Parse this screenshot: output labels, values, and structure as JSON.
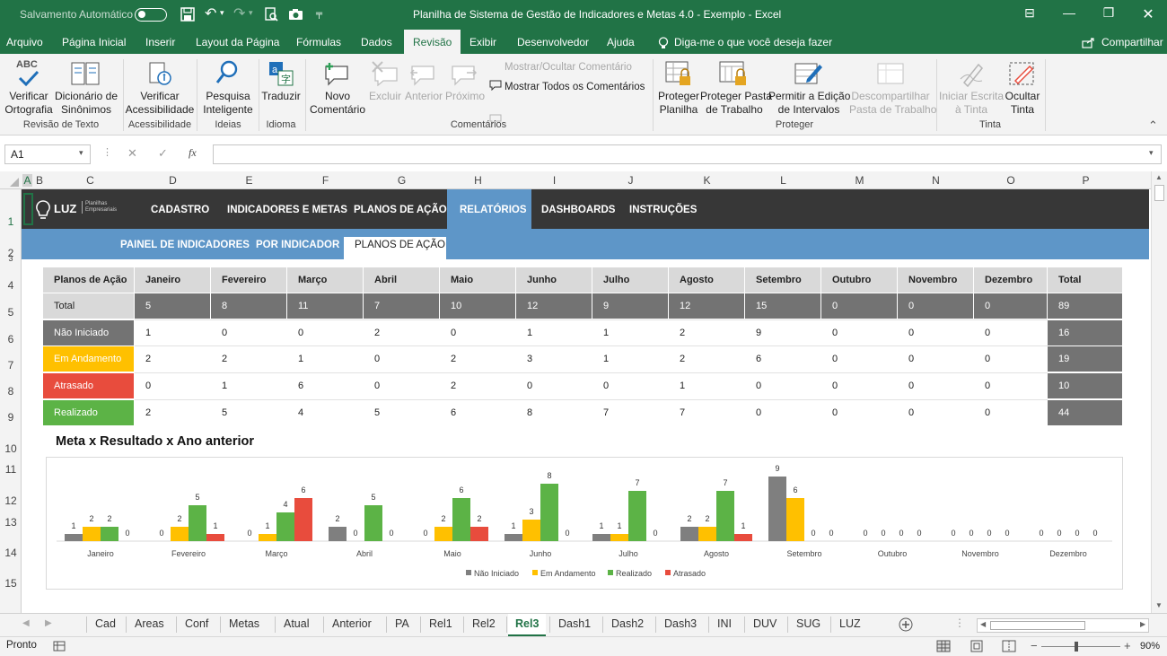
{
  "titlebar": {
    "autosave_label": "Salvamento Automático",
    "autosave_state": "off",
    "title": "Planilha de Sistema de Gestão de Indicadores e Metas 4.0 - Exemplo  -  Excel"
  },
  "menu": {
    "items": [
      "Arquivo",
      "Página Inicial",
      "Inserir",
      "Layout da Página",
      "Fórmulas",
      "Dados",
      "Revisão",
      "Exibir",
      "Desenvolvedor",
      "Ajuda"
    ],
    "active": "Revisão",
    "tell_me": "Diga-me o que você deseja fazer",
    "share": "Compartilhar"
  },
  "ribbon": {
    "abc": "ABC",
    "spell": "Verificar\nOrtografia",
    "thesaurus": "Dicionário de\nSinônimos",
    "group_text": "Revisão de Texto",
    "access": "Verificar\nAcessibilidade",
    "group_access": "Acessibilidade",
    "search": "Pesquisa\nInteligente",
    "group_ideas": "Ideias",
    "translate": "Traduzir",
    "group_lang": "Idioma",
    "new_comment": "Novo\nComentário",
    "delete": "Excluir",
    "previous": "Anterior",
    "next": "Próximo",
    "show_hide": "Mostrar/Ocultar Comentário",
    "show_all": "Mostrar Todos os Comentários",
    "group_comments": "Comentários",
    "protect_sheet": "Proteger\nPlanilha",
    "protect_wb": "Proteger Pasta\nde Trabalho",
    "allow_edit": "Permitir a Edição\nde Intervalos",
    "unshare": "Descompartilhar\nPasta de Trabalho",
    "group_protect": "Proteger",
    "ink_start": "Iniciar Escrita\nà Tinta",
    "ink_hide": "Ocultar\nTinta",
    "group_ink": "Tinta"
  },
  "formula": {
    "namebox": "A1",
    "cancel": "✕",
    "enter": "✓",
    "fx": "fx",
    "value": ""
  },
  "columns": [
    "A",
    "B",
    "C",
    "D",
    "E",
    "F",
    "G",
    "H",
    "I",
    "J",
    "K",
    "L",
    "M",
    "N",
    "O",
    "P"
  ],
  "rows": [
    "1",
    "2",
    "3",
    "4",
    "5",
    "6",
    "7",
    "8",
    "9",
    "10",
    "11",
    "12",
    "13",
    "14",
    "15"
  ],
  "sheet": {
    "logo": "LUZ",
    "logo_sub": "Planilhas\nEmpresariais",
    "nav": [
      "CADASTRO",
      "INDICADORES E METAS",
      "PLANOS DE AÇÃO",
      "RELATÓRIOS",
      "DASHBOARDS",
      "INSTRUÇÕES"
    ],
    "nav_active": "RELATÓRIOS",
    "subnav": [
      "PAINEL DE INDICADORES",
      "POR INDICADOR",
      "PLANOS DE AÇÃO"
    ],
    "subnav_active": "PLANOS DE AÇÃO",
    "table_header": [
      "Planos de Ação",
      "Janeiro",
      "Fevereiro",
      "Março",
      "Abril",
      "Maio",
      "Junho",
      "Julho",
      "Agosto",
      "Setembro",
      "Outubro",
      "Novembro",
      "Dezembro",
      "Total"
    ],
    "table_rows": [
      {
        "label": "Total",
        "values": [
          "5",
          "8",
          "11",
          "7",
          "10",
          "12",
          "9",
          "12",
          "15",
          "0",
          "0",
          "0"
        ],
        "total": "89"
      },
      {
        "label": "Não Iniciado",
        "values": [
          "1",
          "0",
          "0",
          "2",
          "0",
          "1",
          "1",
          "2",
          "9",
          "0",
          "0",
          "0"
        ],
        "total": "16"
      },
      {
        "label": "Em Andamento",
        "values": [
          "2",
          "2",
          "1",
          "0",
          "2",
          "3",
          "1",
          "2",
          "6",
          "0",
          "0",
          "0"
        ],
        "total": "19"
      },
      {
        "label": "Atrasado",
        "values": [
          "0",
          "1",
          "6",
          "0",
          "2",
          "0",
          "0",
          "1",
          "0",
          "0",
          "0",
          "0"
        ],
        "total": "10"
      },
      {
        "label": "Realizado",
        "values": [
          "2",
          "5",
          "4",
          "5",
          "6",
          "8",
          "7",
          "7",
          "0",
          "0",
          "0",
          "0"
        ],
        "total": "44"
      }
    ],
    "row_colors": [
      "#d9d9d9",
      "#737373",
      "#ffc000",
      "#e84c3d",
      "#5cb346"
    ],
    "chart_title": "Meta x Resultado x Ano anterior"
  },
  "chart_data": {
    "type": "bar",
    "title": "Meta x Resultado x Ano anterior",
    "categories": [
      "Janeiro",
      "Fevereiro",
      "Março",
      "Abril",
      "Maio",
      "Junho",
      "Julho",
      "Agosto",
      "Setembro",
      "Outubro",
      "Novembro",
      "Dezembro"
    ],
    "series": [
      {
        "name": "Não Iniciado",
        "color": "#7f7f7f",
        "values": [
          1,
          0,
          0,
          2,
          0,
          1,
          1,
          2,
          9,
          0,
          0,
          0
        ]
      },
      {
        "name": "Em Andamento",
        "color": "#ffc000",
        "values": [
          2,
          2,
          1,
          0,
          2,
          3,
          1,
          2,
          6,
          0,
          0,
          0
        ]
      },
      {
        "name": "Realizado",
        "color": "#5cb346",
        "values": [
          2,
          5,
          4,
          5,
          6,
          8,
          7,
          7,
          0,
          0,
          0,
          0
        ]
      },
      {
        "name": "Atrasado",
        "color": "#e84c3d",
        "values": [
          0,
          1,
          6,
          0,
          2,
          0,
          0,
          1,
          0,
          0,
          0,
          0
        ]
      }
    ],
    "ylim": [
      0,
      9
    ],
    "legend": "bottom"
  },
  "tabs": [
    "Cad",
    "Areas",
    "Conf",
    "Metas",
    "Atual",
    "Anterior",
    "PA",
    "Rel1",
    "Rel2",
    "Rel3",
    "Dash1",
    "Dash2",
    "Dash3",
    "INI",
    "DUV",
    "SUG",
    "LUZ"
  ],
  "active_tab": "Rel3",
  "status": {
    "ready": "Pronto",
    "zoom": "90%"
  }
}
